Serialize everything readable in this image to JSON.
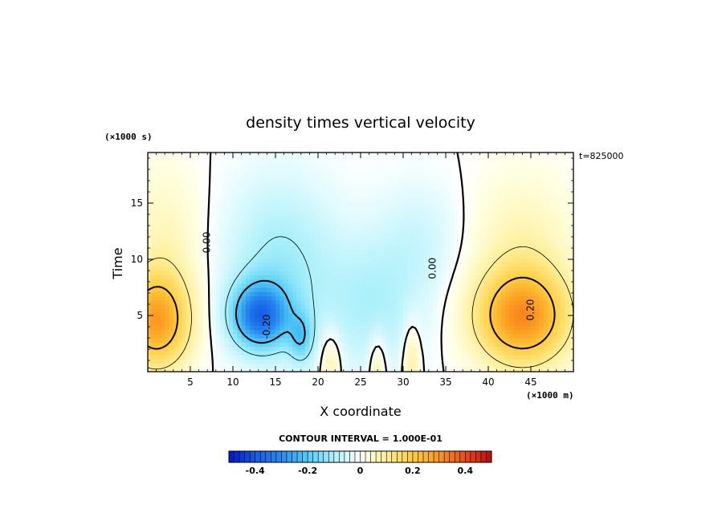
{
  "chart_data": {
    "type": "heatmap",
    "title": "density times vertical velocity",
    "xlabel": "X coordinate",
    "ylabel": "Time",
    "x_unit": "(×1000 m)",
    "y_unit": "(×1000 s)",
    "timestamp": "t=825000",
    "xlim": [
      0,
      50
    ],
    "ylim": [
      0,
      19.5
    ],
    "x_ticks": [
      5,
      10,
      15,
      20,
      25,
      30,
      35,
      40,
      45
    ],
    "y_ticks": [
      5,
      10,
      15
    ],
    "contour_interval_label": "CONTOUR INTERVAL = 1.000E-01",
    "contour_labels": [
      {
        "text": "0.00",
        "x": 7.0,
        "y": 11.5
      },
      {
        "text": "0.00",
        "x": 33.5,
        "y": 9.2
      },
      {
        "text": "-0.20",
        "x": 14.0,
        "y": 4.0
      },
      {
        "text": "0.20",
        "x": 45.0,
        "y": 5.5
      }
    ],
    "features": [
      {
        "name": "negative core",
        "x": 13.0,
        "y": 4.8,
        "value": -0.3
      },
      {
        "name": "negative lobe",
        "x": 18.0,
        "y": 3.0,
        "value": -0.2
      },
      {
        "name": "left positive",
        "x": 1.5,
        "y": 4.5,
        "value": 0.25
      },
      {
        "name": "right positive",
        "x": 43.5,
        "y": 4.8,
        "value": 0.3
      }
    ],
    "colorbar": {
      "min": -0.5,
      "max": 0.5,
      "tick_values": [
        -0.4,
        -0.2,
        0,
        0.2,
        0.4
      ],
      "tick_labels": [
        "-0.4",
        "-0.2",
        "0",
        "0.2",
        "0.4"
      ]
    }
  }
}
